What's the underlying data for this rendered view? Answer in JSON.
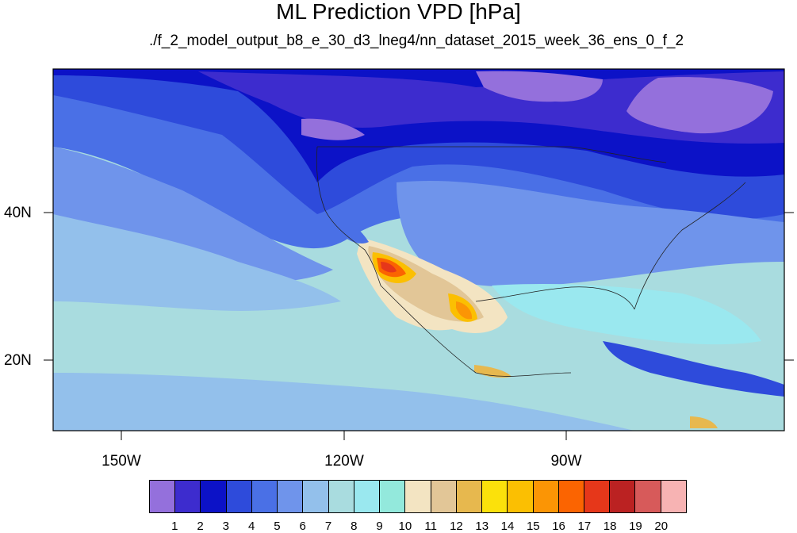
{
  "header": {
    "title": "ML Prediction VPD [hPa]",
    "subtitle": "./f_2_model_output_b8_e_30_d3_lneg4/nn_dataset_2015_week_36_ens_0_f_2"
  },
  "axes": {
    "y_ticks": [
      "40N",
      "20N"
    ],
    "x_ticks": [
      "150W",
      "120W",
      "90W"
    ]
  },
  "palette": {
    "ocean_cool": "#2f2fd0",
    "ocean_mid": "#7a93e6",
    "ocean_light": "#a8dce3",
    "hot": "#e83a1d"
  },
  "colorbar": {
    "colors": [
      "#9470dc",
      "#3d2cce",
      "#0c12c7",
      "#2e4bdb",
      "#4a70e6",
      "#6f94eb",
      "#93c0eb",
      "#a9dcdf",
      "#9ae8ef",
      "#93e9dc",
      "#f3e4c2",
      "#e2c697",
      "#e7b84e",
      "#fbe10b",
      "#fbbf02",
      "#fb9505",
      "#fb6401",
      "#e6371a",
      "#bb2222",
      "#d75a5a",
      "#f7b3b3"
    ],
    "labels": [
      "1",
      "2",
      "3",
      "4",
      "5",
      "6",
      "7",
      "8",
      "9",
      "10",
      "11",
      "12",
      "13",
      "14",
      "15",
      "16",
      "17",
      "18",
      "19",
      "20"
    ]
  }
}
